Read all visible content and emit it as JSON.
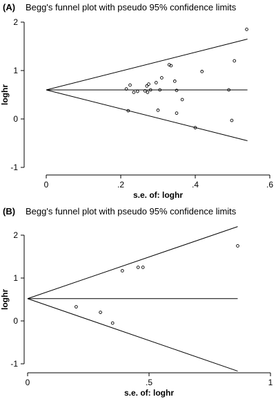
{
  "chart_data": [
    {
      "type": "scatter",
      "panel_label": "(A)",
      "title": "Begg's funnel plot with pseudo 95% confidence limits",
      "xlabel": "s.e. of: loghr",
      "ylabel": "loghr",
      "xlim": [
        0,
        0.6
      ],
      "ylim": [
        -1,
        2
      ],
      "xticks": [
        0,
        0.2,
        0.4,
        0.6
      ],
      "xtick_labels": [
        "0",
        ".2",
        ".4",
        ".6"
      ],
      "yticks": [
        -1,
        0,
        1,
        2
      ],
      "ytick_labels": [
        "-1",
        "0",
        "1",
        "2"
      ],
      "pooled_estimate": 0.6,
      "limits_x_end": 0.54,
      "limits_at_end": [
        -0.45,
        1.65
      ],
      "points": [
        {
          "x": 0.215,
          "y": 0.62
        },
        {
          "x": 0.22,
          "y": 0.17
        },
        {
          "x": 0.225,
          "y": 0.7
        },
        {
          "x": 0.235,
          "y": 0.55
        },
        {
          "x": 0.245,
          "y": 0.57
        },
        {
          "x": 0.265,
          "y": 0.58
        },
        {
          "x": 0.27,
          "y": 0.68
        },
        {
          "x": 0.272,
          "y": 0.55
        },
        {
          "x": 0.275,
          "y": 0.72
        },
        {
          "x": 0.28,
          "y": 0.6
        },
        {
          "x": 0.295,
          "y": 0.75
        },
        {
          "x": 0.3,
          "y": 0.18
        },
        {
          "x": 0.305,
          "y": 0.6
        },
        {
          "x": 0.31,
          "y": 0.85
        },
        {
          "x": 0.33,
          "y": 1.12
        },
        {
          "x": 0.335,
          "y": 1.1
        },
        {
          "x": 0.345,
          "y": 0.78
        },
        {
          "x": 0.35,
          "y": 0.12
        },
        {
          "x": 0.35,
          "y": 0.59
        },
        {
          "x": 0.365,
          "y": 0.4
        },
        {
          "x": 0.4,
          "y": -0.18
        },
        {
          "x": 0.418,
          "y": 0.98
        },
        {
          "x": 0.49,
          "y": 0.6
        },
        {
          "x": 0.498,
          "y": -0.03
        },
        {
          "x": 0.505,
          "y": 1.2
        },
        {
          "x": 0.538,
          "y": 1.85
        }
      ]
    },
    {
      "type": "scatter",
      "panel_label": "(B)",
      "title": "Begg's funnel plot with pseudo 95% confidence limits",
      "xlabel": "s.e. of: loghr",
      "ylabel": "loghr",
      "xlim": [
        0,
        1
      ],
      "ylim": [
        -1,
        2
      ],
      "xticks": [
        0,
        0.5,
        1
      ],
      "xtick_labels": [
        "0",
        ".5",
        "1"
      ],
      "yticks": [
        -1,
        0,
        1,
        2
      ],
      "ytick_labels": [
        "-1",
        "0",
        "1",
        "2"
      ],
      "pooled_estimate": 0.52,
      "limits_x_end": 0.865,
      "limits_at_end": [
        -1.17,
        2.2
      ],
      "points": [
        {
          "x": 0.2,
          "y": 0.33
        },
        {
          "x": 0.3,
          "y": 0.2
        },
        {
          "x": 0.35,
          "y": -0.05
        },
        {
          "x": 0.39,
          "y": 1.17
        },
        {
          "x": 0.455,
          "y": 1.25
        },
        {
          "x": 0.475,
          "y": 1.25
        },
        {
          "x": 0.865,
          "y": 1.75
        }
      ]
    }
  ]
}
